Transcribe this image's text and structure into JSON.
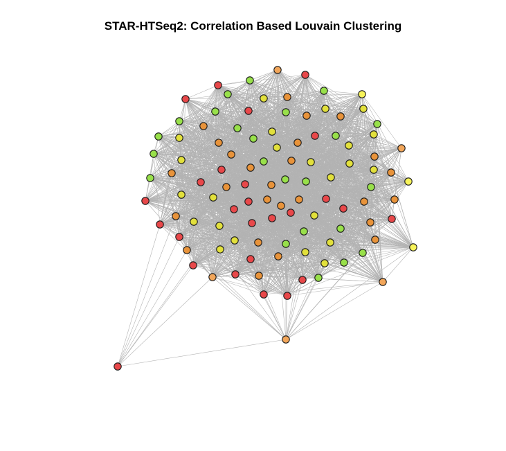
{
  "title": "STAR-HTSeq2: Correlation Based Louvain Clustering",
  "colors": {
    "background": "#ffffff",
    "edge": "#b3b3b3",
    "cluster_red": "#e8484a",
    "cluster_orange": "#e8933a",
    "cluster_lightorange": "#f2a65a",
    "cluster_yellow": "#e2e03c",
    "cluster_lightyellow": "#f7f35a",
    "cluster_green": "#98e04a",
    "node_stroke": "#1a1a1a"
  }
}
